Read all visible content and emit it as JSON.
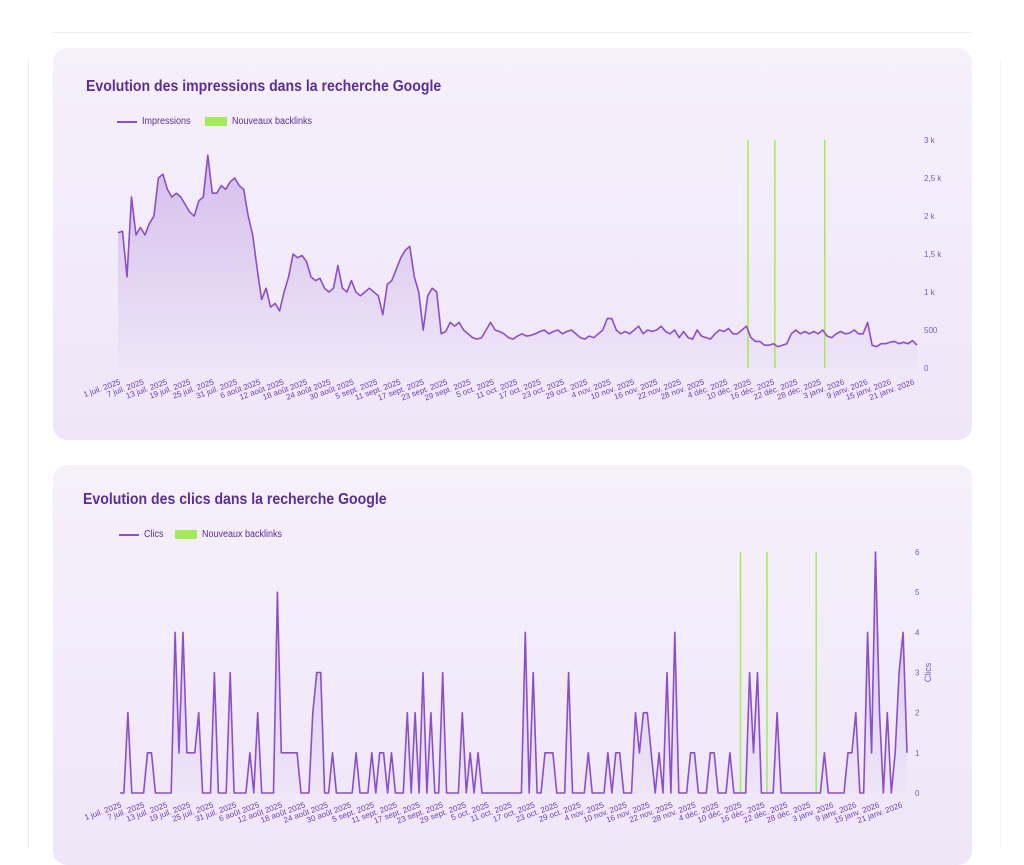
{
  "chart_data": [
    {
      "type": "line",
      "title": "Evolution des impressions dans la recherche Google",
      "legend": [
        "Impressions",
        "Nouveaux backlinks"
      ],
      "legend_position": "top-left",
      "series": [
        {
          "name": "Impressions",
          "x_start": "2025-07-01",
          "x_end": "2026-01-25",
          "values": [
            1780,
            1800,
            1200,
            2250,
            1750,
            1850,
            1750,
            1900,
            2000,
            2500,
            2550,
            2350,
            2250,
            2300,
            2250,
            2150,
            2050,
            2000,
            2200,
            2250,
            2800,
            2300,
            2300,
            2400,
            2350,
            2450,
            2500,
            2400,
            2350,
            2000,
            1750,
            1300,
            900,
            1050,
            800,
            850,
            750,
            1000,
            1200,
            1500,
            1450,
            1480,
            1400,
            1200,
            1150,
            1180,
            1050,
            1000,
            1050,
            1350,
            1050,
            1000,
            1150,
            1000,
            950,
            1000,
            1050,
            1000,
            950,
            700,
            1100,
            1150,
            1300,
            1450,
            1550,
            1600,
            1200,
            1000,
            500,
            950,
            1050,
            1000,
            450,
            480,
            600,
            550,
            600,
            500,
            450,
            400,
            380,
            400,
            500,
            600,
            500,
            480,
            450,
            400,
            380,
            420,
            450,
            420,
            430,
            450,
            480,
            500,
            450,
            480,
            500,
            450,
            480,
            500,
            450,
            400,
            380,
            420,
            400,
            450,
            500,
            650,
            650,
            500,
            450,
            480,
            450,
            500,
            550,
            450,
            500,
            480,
            500,
            550,
            480,
            450,
            500,
            400,
            480,
            400,
            380,
            500,
            420,
            400,
            380,
            450,
            500,
            480,
            520,
            450,
            450,
            500,
            550,
            400,
            350,
            350,
            300,
            300,
            320,
            280,
            300,
            320,
            450,
            500,
            450,
            480,
            450,
            480,
            450,
            500,
            420,
            400,
            450,
            480,
            450,
            460,
            500,
            450,
            450,
            600,
            300,
            280,
            320,
            320,
            340,
            350,
            320,
            340,
            320,
            360,
            300
          ],
          "color": "#8a4fc9"
        }
      ],
      "annotations": {
        "name": "Nouveaux backlinks",
        "dates": [
          "2025-12-12",
          "2025-12-19",
          "2026-01-01"
        ],
        "color": "#a3ea5a"
      },
      "x_ticks": [
        "1 juil. 2025",
        "7 juil. 2025",
        "13 juil. 2025",
        "19 juil. 2025",
        "25 juil. 2025",
        "31 juil. 2025",
        "6 août 2025",
        "12 août 2025",
        "18 août 2025",
        "24 août 2025",
        "30 août 2025",
        "5 sept. 2025",
        "11 sept. 2025",
        "17 sept. 2025",
        "23 sept. 2025",
        "29 sept. 2025",
        "5 oct. 2025",
        "11 oct. 2025",
        "17 oct. 2025",
        "23 oct. 2025",
        "29 oct. 2025",
        "4 nov. 2025",
        "10 nov. 2025",
        "16 nov. 2025",
        "22 nov. 2025",
        "28 nov. 2025",
        "4 déc. 2025",
        "10 déc. 2025",
        "16 déc. 2025",
        "22 déc. 2025",
        "28 déc. 2025",
        "3 janv. 2026",
        "9 janv. 2026",
        "15 janv. 2026",
        "21 janv. 2026"
      ],
      "y_ticks": [
        "0",
        "500",
        "1 k",
        "1,5 k",
        "2 k",
        "2,5 k",
        "3 k"
      ],
      "ylim": [
        0,
        3000
      ],
      "y_axis_position": "right",
      "grid": false
    },
    {
      "type": "line",
      "title": "Evolution des clics dans la recherche Google",
      "ylabel": "Clics",
      "legend": [
        "Clics",
        "Nouveaux backlinks"
      ],
      "legend_position": "top-left",
      "series": [
        {
          "name": "Clics",
          "x_start": "2025-07-01",
          "x_end": "2026-01-25",
          "values": [
            0,
            0,
            2,
            0,
            0,
            0,
            0,
            1,
            1,
            0,
            0,
            0,
            0,
            0,
            4,
            1,
            4,
            1,
            1,
            1,
            2,
            0,
            0,
            0,
            3,
            0,
            0,
            0,
            3,
            0,
            0,
            0,
            0,
            1,
            0,
            2,
            0,
            0,
            0,
            0,
            5,
            1,
            1,
            1,
            1,
            1,
            0,
            0,
            0,
            2,
            3,
            3,
            0,
            0,
            1,
            0,
            0,
            0,
            0,
            0,
            1,
            0,
            0,
            0,
            1,
            0,
            1,
            1,
            0,
            1,
            0,
            0,
            0,
            2,
            0,
            2,
            0,
            3,
            0,
            2,
            0,
            0,
            3,
            0,
            0,
            0,
            0,
            2,
            0,
            1,
            0,
            1,
            0,
            0,
            0,
            0,
            0,
            0,
            0,
            0,
            0,
            0,
            0,
            4,
            0,
            3,
            0,
            0,
            1,
            1,
            1,
            0,
            0,
            0,
            3,
            0,
            0,
            0,
            0,
            1,
            0,
            0,
            0,
            0,
            1,
            0,
            1,
            1,
            0,
            0,
            0,
            2,
            1,
            2,
            2,
            1,
            0,
            1,
            0,
            3,
            0,
            4,
            0,
            0,
            0,
            1,
            1,
            0,
            0,
            0,
            1,
            1,
            0,
            0,
            0,
            1,
            0,
            0,
            0,
            0,
            3,
            1,
            3,
            0,
            0,
            0,
            0,
            2,
            0,
            0,
            0,
            0,
            0,
            0,
            0,
            0,
            0,
            0,
            0,
            1,
            0,
            0,
            0,
            0,
            0,
            1,
            1,
            2,
            0,
            0,
            4,
            1,
            6,
            2,
            0,
            2,
            0,
            1,
            3,
            4,
            1
          ],
          "color": "#8a4fc9"
        }
      ],
      "annotations": {
        "name": "Nouveaux backlinks",
        "dates": [
          "2025-12-12",
          "2025-12-19",
          "2026-01-01"
        ],
        "color": "#a3ea5a"
      },
      "x_ticks": [
        "1 juil. 2025",
        "7 juil. 2025",
        "13 juil. 2025",
        "19 juil. 2025",
        "25 juil. 2025",
        "31 juil. 2025",
        "6 août 2025",
        "12 août 2025",
        "18 août 2025",
        "24 août 2025",
        "30 août 2025",
        "5 sept. 2025",
        "11 sept. 2025",
        "17 sept. 2025",
        "23 sept. 2025",
        "29 sept. 2025",
        "5 oct. 2025",
        "11 oct. 2025",
        "17 oct. 2025",
        "23 oct. 2025",
        "29 oct. 2025",
        "4 nov. 2025",
        "10 nov. 2025",
        "16 nov. 2025",
        "22 nov. 2025",
        "28 nov. 2025",
        "4 déc. 2025",
        "10 déc. 2025",
        "16 déc. 2025",
        "22 déc. 2025",
        "28 déc. 2025",
        "3 janv. 2026",
        "9 janv. 2026",
        "15 janv. 2026",
        "21 janv. 2026"
      ],
      "y_ticks": [
        "0",
        "1",
        "2",
        "3",
        "4",
        "5",
        "6"
      ],
      "ylim": [
        0,
        6
      ],
      "y_axis_position": "right",
      "grid": false
    }
  ]
}
